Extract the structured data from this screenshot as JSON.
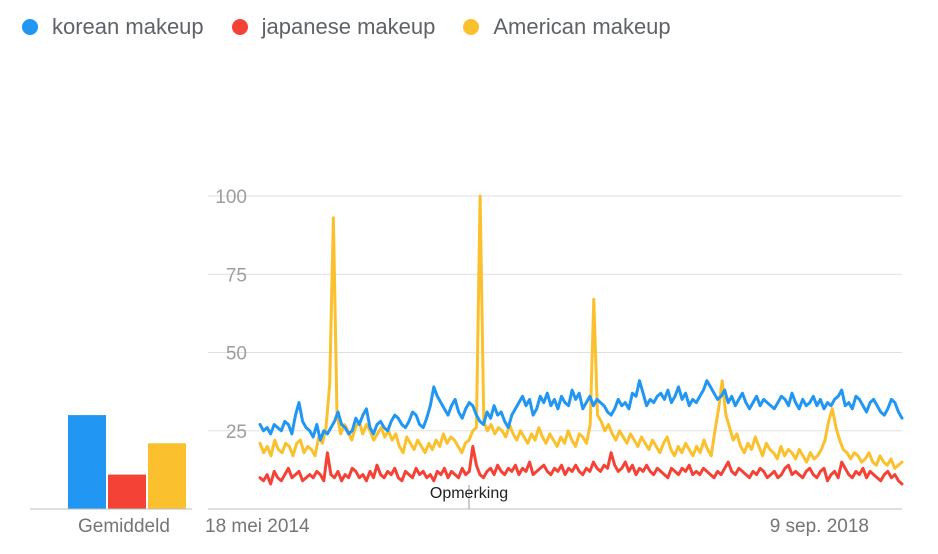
{
  "legend": [
    {
      "label": "korean makeup",
      "color": "#2196f3"
    },
    {
      "label": "japanese makeup",
      "color": "#f44336"
    },
    {
      "label": "American makeup",
      "color": "#fbc02d"
    }
  ],
  "average_label": "Gemiddeld",
  "note_label": "Opmerking",
  "chart_data": {
    "type": "line",
    "x_start": "18 mei 2014",
    "x_end": "9 sep. 2018",
    "x_tick_labels": [
      "18 mei 2014",
      "9 sep. 2018"
    ],
    "y_ticks": [
      25,
      50,
      75,
      100
    ],
    "ylim": [
      0,
      100
    ],
    "grid": true,
    "legend_position": "top-left",
    "averages": {
      "korean makeup": 30,
      "japanese makeup": 11,
      "American makeup": 21
    },
    "series": [
      {
        "name": "korean makeup",
        "color": "#2196f3",
        "values": [
          27,
          25,
          26,
          24,
          27,
          26,
          25,
          28,
          27,
          24,
          30,
          34,
          28,
          26,
          25,
          23,
          27,
          22,
          25,
          24,
          26,
          28,
          31,
          27,
          26,
          24,
          25,
          29,
          27,
          30,
          32,
          26,
          24,
          27,
          28,
          26,
          25,
          28,
          30,
          29,
          27,
          26,
          28,
          31,
          30,
          27,
          26,
          29,
          33,
          39,
          36,
          34,
          32,
          30,
          33,
          35,
          31,
          29,
          32,
          34,
          33,
          30,
          28,
          27,
          31,
          29,
          33,
          30,
          31,
          28,
          26,
          30,
          32,
          34,
          36,
          33,
          35,
          30,
          32,
          36,
          34,
          37,
          33,
          35,
          32,
          36,
          34,
          33,
          38,
          35,
          37,
          32,
          34,
          36,
          33,
          35,
          34,
          33,
          31,
          30,
          32,
          35,
          33,
          34,
          32,
          37,
          36,
          41,
          37,
          33,
          35,
          34,
          36,
          37,
          35,
          38,
          34,
          36,
          39,
          35,
          37,
          33,
          35,
          34,
          36,
          38,
          41,
          39,
          37,
          35,
          36,
          38,
          34,
          36,
          33,
          35,
          37,
          34,
          32,
          34,
          36,
          33,
          35,
          34,
          33,
          32,
          34,
          36,
          35,
          33,
          37,
          34,
          32,
          35,
          33,
          34,
          36,
          33,
          35,
          32,
          34,
          33,
          35,
          36,
          38,
          33,
          34,
          32,
          36,
          35,
          33,
          31,
          34,
          35,
          33,
          31,
          30,
          32,
          35,
          34,
          31,
          29
        ]
      },
      {
        "name": "japanese makeup",
        "color": "#f44336",
        "values": [
          10,
          9,
          11,
          8,
          12,
          10,
          9,
          11,
          13,
          10,
          11,
          12,
          9,
          10,
          11,
          10,
          12,
          11,
          9,
          18,
          11,
          10,
          12,
          9,
          11,
          10,
          13,
          12,
          10,
          11,
          9,
          12,
          10,
          14,
          11,
          10,
          12,
          11,
          13,
          10,
          9,
          12,
          11,
          10,
          13,
          11,
          12,
          10,
          11,
          9,
          12,
          11,
          13,
          10,
          12,
          11,
          10,
          13,
          11,
          12,
          20,
          14,
          11,
          10,
          12,
          13,
          11,
          14,
          12,
          11,
          13,
          12,
          14,
          11,
          13,
          12,
          15,
          11,
          12,
          13,
          14,
          12,
          11,
          13,
          12,
          14,
          11,
          13,
          12,
          14,
          12,
          11,
          13,
          12,
          15,
          13,
          12,
          14,
          13,
          18,
          14,
          12,
          13,
          15,
          12,
          14,
          11,
          13,
          12,
          14,
          12,
          11,
          13,
          12,
          11,
          10,
          13,
          12,
          11,
          13,
          12,
          14,
          11,
          12,
          11,
          13,
          12,
          11,
          10,
          12,
          11,
          13,
          15,
          12,
          11,
          13,
          12,
          11,
          10,
          12,
          11,
          13,
          12,
          10,
          11,
          12,
          10,
          11,
          13,
          14,
          11,
          12,
          11,
          10,
          12,
          13,
          11,
          10,
          12,
          13,
          9,
          11,
          12,
          10,
          15,
          13,
          11,
          10,
          12,
          11,
          13,
          10,
          12,
          11,
          10,
          9,
          11,
          12,
          10,
          11,
          9,
          8
        ]
      },
      {
        "name": "American makeup",
        "color": "#fbc02d",
        "values": [
          21,
          18,
          20,
          17,
          22,
          19,
          18,
          21,
          20,
          17,
          21,
          22,
          18,
          20,
          19,
          17,
          23,
          21,
          26,
          40,
          93,
          30,
          24,
          27,
          25,
          22,
          26,
          28,
          24,
          27,
          25,
          22,
          24,
          26,
          23,
          25,
          22,
          24,
          20,
          18,
          23,
          21,
          19,
          22,
          20,
          18,
          21,
          19,
          22,
          20,
          24,
          21,
          23,
          22,
          20,
          18,
          21,
          22,
          25,
          26,
          100,
          28,
          25,
          27,
          24,
          26,
          25,
          23,
          27,
          24,
          22,
          25,
          23,
          21,
          24,
          22,
          26,
          23,
          21,
          24,
          22,
          20,
          23,
          21,
          25,
          22,
          20,
          24,
          23,
          21,
          27,
          67,
          30,
          28,
          25,
          27,
          24,
          22,
          25,
          23,
          21,
          24,
          22,
          20,
          23,
          21,
          19,
          22,
          20,
          18,
          21,
          23,
          19,
          17,
          20,
          18,
          21,
          19,
          17,
          20,
          18,
          22,
          19,
          17,
          25,
          32,
          41,
          30,
          26,
          22,
          24,
          20,
          18,
          21,
          19,
          23,
          20,
          17,
          21,
          19,
          18,
          16,
          20,
          17,
          19,
          18,
          16,
          19,
          17,
          15,
          18,
          16,
          17,
          19,
          22,
          28,
          32,
          26,
          22,
          19,
          18,
          16,
          18,
          17,
          15,
          16,
          18,
          15,
          14,
          17,
          15,
          14,
          16,
          13,
          14,
          15
        ]
      }
    ]
  }
}
